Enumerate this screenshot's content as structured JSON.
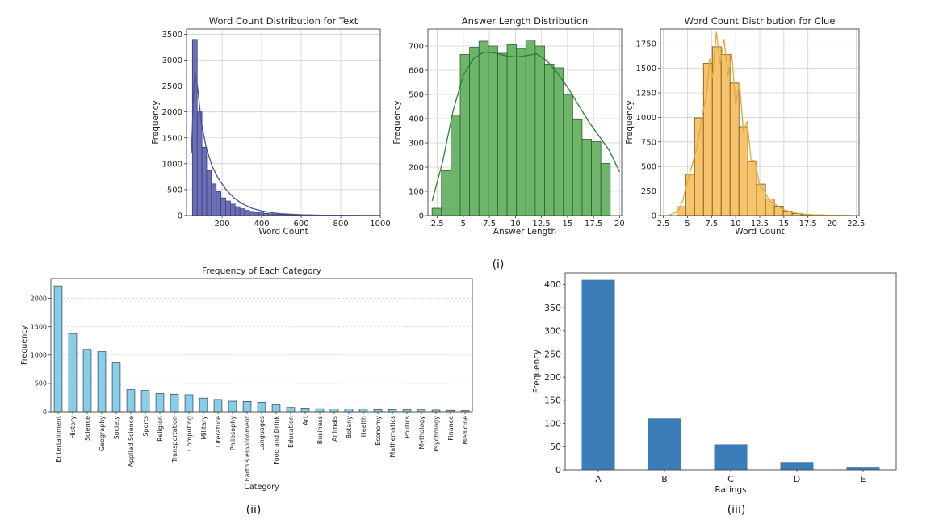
{
  "captions": [
    "(i)",
    "(ii)",
    "(iii)"
  ],
  "chart_data": [
    {
      "id": "text-wc",
      "type": "histogram",
      "title": "Word Count Distribution for Text",
      "xlabel": "Word Count",
      "ylabel": "Frequency",
      "xlim": [
        20,
        1000
      ],
      "ylim": [
        0,
        3600
      ],
      "xticks": [
        200,
        400,
        600,
        800,
        1000
      ],
      "yticks": [
        0,
        500,
        1000,
        1500,
        2000,
        2500,
        3000,
        3500
      ],
      "bin_start": 50,
      "bin_width": 24,
      "values": [
        3400,
        2000,
        1320,
        870,
        610,
        460,
        340,
        280,
        220,
        170,
        130,
        100,
        80,
        65,
        52,
        42,
        34,
        27,
        22,
        18,
        15,
        12,
        10,
        8,
        7,
        6,
        5,
        4,
        4,
        3,
        3,
        2,
        2,
        2,
        2,
        1,
        1,
        1,
        1
      ],
      "kde": [
        [
          45,
          1200
        ],
        [
          55,
          2300
        ],
        [
          62,
          2750
        ],
        [
          75,
          2500
        ],
        [
          95,
          1800
        ],
        [
          120,
          1300
        ],
        [
          150,
          950
        ],
        [
          180,
          720
        ],
        [
          220,
          500
        ],
        [
          260,
          340
        ],
        [
          300,
          230
        ],
        [
          350,
          140
        ],
        [
          400,
          90
        ],
        [
          450,
          55
        ],
        [
          500,
          35
        ],
        [
          600,
          15
        ],
        [
          700,
          7
        ],
        [
          800,
          4
        ],
        [
          1000,
          1
        ]
      ],
      "color": "#6b6fb5",
      "edge": "#3b3f7a",
      "line": "#4a4f9e",
      "grid": true
    },
    {
      "id": "answer-len",
      "type": "histogram",
      "title": "Answer Length Distribution",
      "xlabel": "Answer Length",
      "ylabel": "Frequency",
      "xlim": [
        1.6,
        20.2
      ],
      "ylim": [
        0,
        770
      ],
      "xticks": [
        2.5,
        5.0,
        7.5,
        10.0,
        12.5,
        15.0,
        17.5,
        20.0
      ],
      "yticks": [
        0,
        100,
        200,
        300,
        400,
        500,
        600,
        700
      ],
      "bin_start": 2.0,
      "bin_width": 0.9,
      "values": [
        30,
        185,
        415,
        665,
        695,
        720,
        700,
        670,
        705,
        690,
        725,
        700,
        625,
        610,
        500,
        395,
        315,
        305,
        215
      ],
      "kde": [
        [
          2.0,
          60
        ],
        [
          3.0,
          220
        ],
        [
          4.0,
          430
        ],
        [
          5.0,
          580
        ],
        [
          6.0,
          650
        ],
        [
          7.0,
          675
        ],
        [
          8.0,
          672
        ],
        [
          9.0,
          660
        ],
        [
          10.0,
          655
        ],
        [
          11.0,
          660
        ],
        [
          12.0,
          668
        ],
        [
          13.0,
          640
        ],
        [
          14.0,
          590
        ],
        [
          15.0,
          530
        ],
        [
          16.0,
          460
        ],
        [
          17.0,
          390
        ],
        [
          18.0,
          330
        ],
        [
          19.0,
          270
        ],
        [
          20.0,
          180
        ]
      ],
      "color": "#6db56b",
      "edge": "#2e5e2e",
      "line": "#2f7d32",
      "grid": true
    },
    {
      "id": "clue-wc",
      "type": "histogram",
      "title": "Word Count Distribution for Clue",
      "xlabel": "Word Count",
      "ylabel": "Frequency",
      "xlim": [
        2.2,
        22.8
      ],
      "ylim": [
        0,
        1900
      ],
      "xticks": [
        2.5,
        5.0,
        7.5,
        10.0,
        12.5,
        15.0,
        17.5,
        20.0,
        22.5
      ],
      "yticks": [
        0,
        250,
        500,
        750,
        1000,
        1250,
        1500,
        1750
      ],
      "bin_start": 3.9,
      "bin_width": 0.92,
      "values": [
        90,
        420,
        995,
        1550,
        1720,
        1640,
        1350,
        905,
        550,
        320,
        170,
        95,
        45,
        20,
        10,
        5,
        3,
        2
      ],
      "kde": [
        [
          3.0,
          0
        ],
        [
          4.0,
          40
        ],
        [
          4.5,
          150
        ],
        [
          5.0,
          350
        ],
        [
          5.5,
          520
        ],
        [
          6.0,
          700
        ],
        [
          6.5,
          1000
        ],
        [
          7.0,
          1250
        ],
        [
          7.3,
          1600
        ],
        [
          7.6,
          1400
        ],
        [
          8.0,
          1870
        ],
        [
          8.4,
          1550
        ],
        [
          8.8,
          1800
        ],
        [
          9.2,
          1420
        ],
        [
          9.6,
          1650
        ],
        [
          10.0,
          1120
        ],
        [
          10.4,
          1350
        ],
        [
          10.8,
          860
        ],
        [
          11.2,
          960
        ],
        [
          11.6,
          560
        ],
        [
          12.0,
          560
        ],
        [
          12.5,
          300
        ],
        [
          13.0,
          250
        ],
        [
          13.5,
          150
        ],
        [
          14.0,
          120
        ],
        [
          15.0,
          60
        ],
        [
          16.0,
          30
        ],
        [
          17.0,
          15
        ],
        [
          18.0,
          8
        ],
        [
          20.0,
          3
        ],
        [
          22.0,
          1
        ]
      ],
      "color": "#f7c46c",
      "edge": "#6e5220",
      "line": "#e0a93a",
      "grid": true
    },
    {
      "id": "category",
      "type": "bar",
      "title": "Frequency of Each Category",
      "xlabel": "Category",
      "ylabel": "Frequency",
      "ylim": [
        0,
        2350
      ],
      "yticks": [
        0,
        500,
        1000,
        1500,
        2000
      ],
      "categories": [
        "Entertainment",
        "History",
        "Science",
        "Geography",
        "Society",
        "Applied Science",
        "Sports",
        "Religion",
        "Transportation",
        "Computing",
        "Military",
        "Literature",
        "Philosophy",
        "Earth's environment",
        "Languages",
        "Food and Drink",
        "Education",
        "Art",
        "Business",
        "Animals",
        "Botany",
        "Health",
        "Economy",
        "Mathematics",
        "Politics",
        "Mythology",
        "Psychology",
        "Finance",
        "Medicine"
      ],
      "values": [
        2220,
        1380,
        1100,
        1060,
        860,
        390,
        375,
        320,
        310,
        300,
        240,
        215,
        185,
        180,
        165,
        120,
        75,
        65,
        55,
        50,
        50,
        45,
        40,
        40,
        35,
        32,
        30,
        25,
        20
      ],
      "color": "#87ceeb",
      "edge": "#222222",
      "grid": "y"
    },
    {
      "id": "ratings",
      "type": "bar",
      "title": "",
      "xlabel": "Ratings",
      "ylabel": "Frequency",
      "ylim": [
        0,
        425
      ],
      "yticks": [
        0,
        50,
        100,
        150,
        200,
        250,
        300,
        350,
        400
      ],
      "categories": [
        "A",
        "B",
        "C",
        "D",
        "E"
      ],
      "values": [
        410,
        111,
        55,
        17,
        5
      ],
      "color": "#3a7db8",
      "grid": false
    }
  ]
}
